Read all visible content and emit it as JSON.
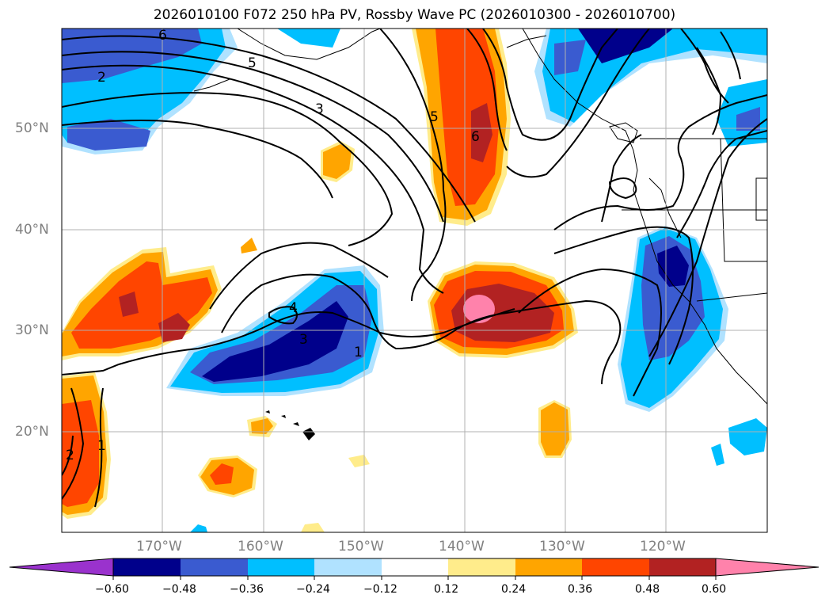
{
  "title": "2026010100 F072 250 hPa PV, Rossby Wave PC (2026010300 - 2026010700)",
  "lat_labels": [
    "50°N",
    "40°N",
    "30°N",
    "20°N"
  ],
  "lon_labels": [
    "170°W",
    "160°W",
    "150°W",
    "140°W",
    "130°W",
    "120°W"
  ],
  "contour_labels": [
    "6",
    "5",
    "2",
    "3",
    "5",
    "6",
    "4",
    "3",
    "1",
    "2",
    "1"
  ],
  "colorbar": {
    "ticks": [
      "−0.60",
      "−0.48",
      "−0.36",
      "−0.24",
      "−0.12",
      "0.12",
      "0.24",
      "0.36",
      "0.48",
      "0.60"
    ],
    "colors": [
      "#9a32cd",
      "#00008b",
      "#3a5bd0",
      "#00bfff",
      "#b0e2ff",
      "#ffffff",
      "#ffec8b",
      "#ffa500",
      "#ff4500",
      "#b22222",
      "#ff82ab"
    ]
  },
  "colors": {
    "neg_strong": "#00008b",
    "neg_mid": "#3a5bd0",
    "neg_weak": "#00bfff",
    "neg_faint": "#b0e2ff",
    "pos_faint": "#ffec8b",
    "pos_weak": "#ffa500",
    "pos_mid": "#ff4500",
    "pos_strong": "#b22222",
    "pos_max": "#ff82ab"
  }
}
